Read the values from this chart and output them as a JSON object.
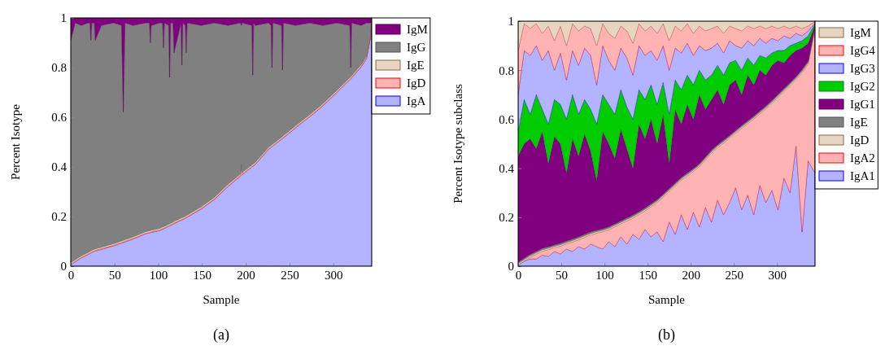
{
  "chart_data": [
    {
      "type": "area",
      "stacked": true,
      "xlabel": "Sample",
      "ylabel": "Percent Isotype",
      "annotations": [
        "(a)"
      ],
      "legend": "right",
      "xlim": [
        0,
        344
      ],
      "ylim": [
        0,
        1
      ],
      "xticks": [
        0,
        50,
        100,
        150,
        200,
        250,
        300
      ],
      "yticks": [
        0,
        0.2,
        0.4,
        0.6,
        0.8,
        1
      ],
      "x": [
        0,
        5,
        12,
        20,
        22,
        23,
        24,
        27,
        28,
        35,
        49,
        58,
        60,
        62,
        71,
        86,
        90,
        91,
        92,
        102,
        105,
        106,
        107,
        112,
        113,
        114,
        117,
        118,
        126,
        127,
        128,
        131,
        132,
        133,
        149,
        164,
        180,
        194,
        195,
        196,
        207,
        208,
        209,
        211,
        226,
        229,
        230,
        231,
        241,
        242,
        243,
        257,
        273,
        288,
        304,
        319,
        320,
        321,
        332,
        338,
        343,
        344
      ],
      "series": [
        {
          "name": "IgA",
          "color": "#b3b3ff",
          "values": [
            0.005,
            0.017,
            0.033,
            0.047,
            0.051,
            0.053,
            0.055,
            0.06,
            0.061,
            0.068,
            0.082,
            0.093,
            0.095,
            0.098,
            0.109,
            0.131,
            0.134,
            0.135,
            0.136,
            0.144,
            0.149,
            0.151,
            0.152,
            0.161,
            0.162,
            0.164,
            0.169,
            0.171,
            0.185,
            0.186,
            0.188,
            0.193,
            0.195,
            0.197,
            0.23,
            0.268,
            0.322,
            0.363,
            0.366,
            0.369,
            0.399,
            0.402,
            0.404,
            0.41,
            0.47,
            0.478,
            0.481,
            0.484,
            0.511,
            0.514,
            0.517,
            0.557,
            0.601,
            0.645,
            0.699,
            0.751,
            0.754,
            0.758,
            0.803,
            0.836,
            0.929,
            0.99
          ]
        },
        {
          "name": "IgD",
          "color": "#ffb3b3",
          "values": [
            0.003,
            0.003,
            0.003,
            0.003,
            0.003,
            0.003,
            0.003,
            0.003,
            0.003,
            0.003,
            0.003,
            0.003,
            0.003,
            0.003,
            0.003,
            0.003,
            0.003,
            0.003,
            0.003,
            0.003,
            0.003,
            0.003,
            0.003,
            0.003,
            0.003,
            0.003,
            0.003,
            0.003,
            0.003,
            0.003,
            0.003,
            0.003,
            0.003,
            0.003,
            0.003,
            0.003,
            0.003,
            0.003,
            0.038,
            0.003,
            0.003,
            0.003,
            0.003,
            0.003,
            0.003,
            0.003,
            0.003,
            0.003,
            0.003,
            0.003,
            0.003,
            0.003,
            0.003,
            0.003,
            0.003,
            0.003,
            0.003,
            0.003,
            0.003,
            0.003,
            0.003,
            0.003
          ]
        },
        {
          "name": "IgE",
          "color": "#e6d5c3",
          "values": [
            0.006,
            0.006,
            0.006,
            0.006,
            0.006,
            0.006,
            0.006,
            0.006,
            0.006,
            0.006,
            0.006,
            0.006,
            0.006,
            0.006,
            0.006,
            0.006,
            0.006,
            0.006,
            0.006,
            0.006,
            0.006,
            0.006,
            0.006,
            0.006,
            0.006,
            0.006,
            0.006,
            0.006,
            0.006,
            0.006,
            0.006,
            0.006,
            0.006,
            0.006,
            0.006,
            0.006,
            0.006,
            0.006,
            0.006,
            0.006,
            0.006,
            0.006,
            0.006,
            0.006,
            0.006,
            0.006,
            0.006,
            0.006,
            0.006,
            0.006,
            0.006,
            0.006,
            0.006,
            0.006,
            0.006,
            0.006,
            0.006,
            0.006,
            0.006,
            0.006,
            0.006,
            0.006
          ]
        },
        {
          "name": "IgG",
          "color": "#808080",
          "values": [
            0.896,
            0.954,
            0.928,
            0.924,
            0.92,
            0.848,
            0.916,
            0.911,
            0.84,
            0.893,
            0.889,
            0.868,
            0.516,
            0.873,
            0.852,
            0.84,
            0.837,
            0.756,
            0.825,
            0.827,
            0.822,
            0.72,
            0.819,
            0.8,
            0.589,
            0.807,
            0.802,
            0.68,
            0.786,
            0.615,
            0.783,
            0.768,
            0.656,
            0.774,
            0.731,
            0.703,
            0.639,
            0.608,
            0.56,
            0.602,
            0.562,
            0.359,
            0.567,
            0.551,
            0.501,
            0.483,
            0.31,
            0.487,
            0.45,
            0.267,
            0.454,
            0.404,
            0.37,
            0.316,
            0.272,
            0.21,
            0.037,
            0.213,
            0.158,
            0.135,
            0.042,
            0.001
          ]
        },
        {
          "name": "IgM",
          "color": "#800080",
          "values": [
            0.09,
            0.02,
            0.03,
            0.02,
            0.02,
            0.09,
            0.02,
            0.02,
            0.09,
            0.03,
            0.02,
            0.03,
            0.38,
            0.02,
            0.03,
            0.02,
            0.02,
            0.1,
            0.03,
            0.02,
            0.02,
            0.12,
            0.02,
            0.03,
            0.24,
            0.02,
            0.02,
            0.14,
            0.02,
            0.19,
            0.02,
            0.03,
            0.14,
            0.02,
            0.03,
            0.02,
            0.03,
            0.02,
            0.03,
            0.02,
            0.03,
            0.23,
            0.02,
            0.03,
            0.02,
            0.03,
            0.2,
            0.02,
            0.03,
            0.21,
            0.02,
            0.03,
            0.02,
            0.03,
            0.02,
            0.03,
            0.2,
            0.02,
            0.03,
            0.02,
            0.02,
            0
          ]
        }
      ]
    },
    {
      "type": "area",
      "stacked": true,
      "xlabel": "Sample",
      "ylabel": "Percent Isotype subclass",
      "annotations": [
        "(b)"
      ],
      "legend": "right",
      "xlim": [
        0,
        344
      ],
      "ylim": [
        0,
        1
      ],
      "xticks": [
        0,
        50,
        100,
        150,
        200,
        250,
        300
      ],
      "yticks": [
        0,
        0.2,
        0.4,
        0.6,
        0.8,
        1
      ],
      "x": [
        0,
        7,
        14,
        21,
        28,
        35,
        42,
        49,
        56,
        63,
        70,
        77,
        84,
        91,
        98,
        105,
        112,
        119,
        126,
        133,
        140,
        147,
        154,
        161,
        168,
        175,
        182,
        189,
        196,
        203,
        210,
        217,
        224,
        231,
        238,
        245,
        252,
        259,
        266,
        273,
        280,
        287,
        294,
        301,
        308,
        315,
        322,
        329,
        336,
        344
      ],
      "series": [
        {
          "name": "IgA1",
          "color": "#b3b3ff",
          "values": [
            0.005,
            0.02,
            0.03,
            0.03,
            0.045,
            0.04,
            0.06,
            0.05,
            0.07,
            0.06,
            0.08,
            0.07,
            0.09,
            0.08,
            0.07,
            0.1,
            0.08,
            0.12,
            0.09,
            0.13,
            0.11,
            0.15,
            0.12,
            0.14,
            0.1,
            0.18,
            0.13,
            0.21,
            0.15,
            0.22,
            0.16,
            0.24,
            0.18,
            0.27,
            0.21,
            0.26,
            0.32,
            0.23,
            0.29,
            0.21,
            0.33,
            0.26,
            0.31,
            0.23,
            0.36,
            0.3,
            0.49,
            0.14,
            0.43,
            0.38
          ]
        },
        {
          "name": "IgA2",
          "color": "#ffb3b3",
          "values": [
            0,
            0.001,
            0.007,
            0.019,
            0.016,
            0.028,
            0.015,
            0.032,
            0.021,
            0.039,
            0.028,
            0.048,
            0.038,
            0.055,
            0.071,
            0.049,
            0.081,
            0.053,
            0.095,
            0.067,
            0.101,
            0.076,
            0.123,
            0.12,
            0.182,
            0.125,
            0.198,
            0.141,
            0.219,
            0.167,
            0.247,
            0.194,
            0.282,
            0.214,
            0.293,
            0.262,
            0.223,
            0.333,
            0.292,
            0.391,
            0.292,
            0.382,
            0.355,
            0.459,
            0.353,
            0.437,
            0.272,
            0.651,
            0.395,
            0.59
          ]
        },
        {
          "name": "IgD",
          "color": "#e6d5c3",
          "values": [
            0.006,
            0.006,
            0.006,
            0.006,
            0.006,
            0.006,
            0.006,
            0.006,
            0.006,
            0.006,
            0.006,
            0.006,
            0.006,
            0.006,
            0.006,
            0.006,
            0.006,
            0.006,
            0.006,
            0.006,
            0.006,
            0.006,
            0.006,
            0.006,
            0.006,
            0.006,
            0.006,
            0.006,
            0.006,
            0.006,
            0.006,
            0.006,
            0.006,
            0.006,
            0.006,
            0.006,
            0.006,
            0.006,
            0.006,
            0.006,
            0.006,
            0.006,
            0.006,
            0.006,
            0.006,
            0.006,
            0.006,
            0.006,
            0.006,
            0.006
          ]
        },
        {
          "name": "IgE",
          "color": "#808080",
          "values": [
            0.006,
            0.006,
            0.006,
            0.006,
            0.006,
            0.006,
            0.006,
            0.006,
            0.006,
            0.006,
            0.006,
            0.006,
            0.006,
            0.006,
            0.006,
            0.006,
            0.006,
            0.006,
            0.006,
            0.006,
            0.006,
            0.006,
            0.006,
            0.006,
            0.006,
            0.006,
            0.006,
            0.006,
            0.006,
            0.006,
            0.006,
            0.006,
            0.006,
            0.006,
            0.006,
            0.006,
            0.006,
            0.006,
            0.006,
            0.006,
            0.006,
            0.006,
            0.006,
            0.006,
            0.006,
            0.006,
            0.006,
            0.006,
            0.006,
            0.006
          ]
        },
        {
          "name": "IgG1",
          "color": "#800080",
          "values": [
            0.433,
            0.467,
            0.471,
            0.419,
            0.477,
            0.34,
            0.443,
            0.406,
            0.277,
            0.409,
            0.33,
            0.41,
            0.33,
            0.203,
            0.397,
            0.339,
            0.267,
            0.375,
            0.283,
            0.191,
            0.357,
            0.282,
            0.345,
            0.228,
            0.326,
            0.103,
            0.3,
            0.217,
            0.279,
            0.201,
            0.281,
            0.194,
            0.206,
            0.224,
            0.145,
            0.206,
            0.205,
            0.125,
            0.186,
            0.127,
            0.166,
            0.126,
            0.143,
            0.139,
            0.105,
            0.111,
            0.106,
            0.087,
            0.073,
            0.002
          ]
        },
        {
          "name": "IgG2",
          "color": "#00cc00",
          "values": [
            0.1,
            0.18,
            0.1,
            0.22,
            0.09,
            0.16,
            0.15,
            0.16,
            0.22,
            0.18,
            0.17,
            0.14,
            0.17,
            0.23,
            0.15,
            0.16,
            0.18,
            0.16,
            0.17,
            0.2,
            0.14,
            0.16,
            0.14,
            0.16,
            0.13,
            0.2,
            0.12,
            0.14,
            0.12,
            0.14,
            0.1,
            0.12,
            0.1,
            0.1,
            0.12,
            0.09,
            0.08,
            0.1,
            0.07,
            0.08,
            0.06,
            0.07,
            0.05,
            0.04,
            0.05,
            0.04,
            0.03,
            0.03,
            0.03,
            0.005
          ]
        },
        {
          "name": "IgG3",
          "color": "#b3b3ff",
          "values": [
            0.15,
            0.2,
            0.24,
            0.2,
            0.2,
            0.3,
            0.12,
            0.21,
            0.16,
            0.18,
            0.2,
            0.21,
            0.22,
            0.16,
            0.2,
            0.18,
            0.18,
            0.17,
            0.2,
            0.18,
            0.18,
            0.18,
            0.14,
            0.18,
            0.15,
            0.18,
            0.13,
            0.15,
            0.13,
            0.12,
            0.1,
            0.12,
            0.11,
            0.09,
            0.09,
            0.09,
            0.06,
            0.09,
            0.07,
            0.08,
            0.07,
            0.06,
            0.06,
            0.04,
            0.06,
            0.03,
            0.04,
            0.02,
            0.02,
            0.005
          ]
        },
        {
          "name": "IgG4",
          "color": "#ffb3b3",
          "values": [
            0.18,
            0.11,
            0.11,
            0.09,
            0.11,
            0.1,
            0.12,
            0.11,
            0.14,
            0.11,
            0.14,
            0.09,
            0.11,
            0.16,
            0.09,
            0.11,
            0.13,
            0.09,
            0.11,
            0.13,
            0.09,
            0.1,
            0.1,
            0.11,
            0.09,
            0.12,
            0.09,
            0.09,
            0.08,
            0.09,
            0.08,
            0.08,
            0.08,
            0.07,
            0.08,
            0.06,
            0.07,
            0.07,
            0.06,
            0.07,
            0.05,
            0.06,
            0.05,
            0.05,
            0.04,
            0.04,
            0.03,
            0.03,
            0.02,
            0.005
          ]
        },
        {
          "name": "IgM",
          "color": "#e6d5c3",
          "values": [
            0.12,
            0.01,
            0.03,
            0.01,
            0.05,
            0.02,
            0.08,
            0.02,
            0.1,
            0.01,
            0.04,
            0.02,
            0.03,
            0.1,
            0.01,
            0.05,
            0.07,
            0.02,
            0.04,
            0.09,
            0.01,
            0.04,
            0.02,
            0.05,
            0.01,
            0.08,
            0.02,
            0.04,
            0.01,
            0.05,
            0.02,
            0.04,
            0.03,
            0.02,
            0.05,
            0.02,
            0.03,
            0.04,
            0.02,
            0.03,
            0.02,
            0.03,
            0.02,
            0.03,
            0.02,
            0.03,
            0.02,
            0.03,
            0.02,
            0.001
          ]
        }
      ]
    }
  ]
}
